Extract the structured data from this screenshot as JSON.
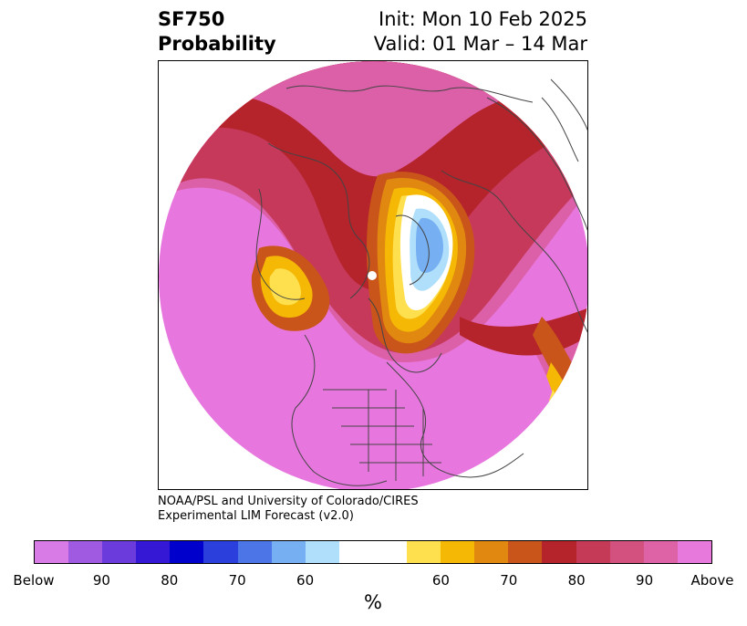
{
  "header": {
    "variable": "SF750",
    "quantity": "Probability",
    "init": "Init: Mon 10 Feb 2025",
    "valid": "Valid: 01 Mar – 14 Mar"
  },
  "credit": {
    "line1": "NOAA/PSL and University of Colorado/CIRES",
    "line2": "Experimental LIM Forecast (v2.0)"
  },
  "colorbar": {
    "colors": [
      "#d87be6",
      "#a05ae2",
      "#6c3bdb",
      "#3517d6",
      "#0000cd",
      "#2a3fdc",
      "#4c76e8",
      "#76b0f2",
      "#b0dffb",
      "#ffffff",
      "#ffffff",
      "#fee04f",
      "#f5b805",
      "#e0880f",
      "#c9551a",
      "#b5232b",
      "#c53a56",
      "#d2517f",
      "#dd62a6",
      "#e779dc"
    ],
    "labels": [
      "Below",
      "90",
      "80",
      "70",
      "60",
      "60",
      "70",
      "80",
      "90",
      "Above"
    ],
    "unit": "%"
  },
  "map": {
    "colors": {
      "above_high": "#e777de",
      "above_90": "#dc60a8",
      "above_80": "#c6395a",
      "above_75": "#b5232b",
      "above_70": "#c9551a",
      "above_65": "#e0880f",
      "above_60": "#f5b805",
      "above_55": "#fee04f",
      "below_55": "#b0dffb",
      "below_60": "#76b0f2",
      "neutral": "#ffffff",
      "coast": "#444444"
    }
  }
}
